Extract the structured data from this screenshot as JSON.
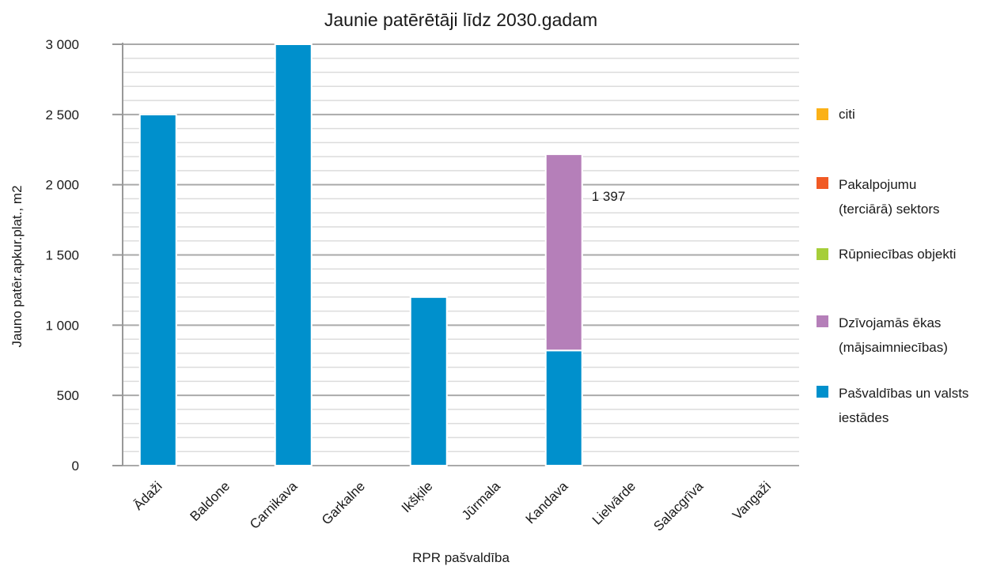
{
  "chart_data": {
    "type": "bar",
    "stacked": true,
    "title": "Jaunie patērētāji līdz 2030.gadam",
    "xlabel": "RPR pašvaldība",
    "ylabel": "Jauno patēr.apkur.plat., m2",
    "ylim": [
      0,
      3000
    ],
    "yticks": [
      0,
      500,
      1000,
      1500,
      2000,
      2500,
      3000
    ],
    "ytick_labels": [
      "0",
      "500",
      "1 000",
      "1 500",
      "2 000",
      "2 500",
      "3 000"
    ],
    "grid": true,
    "legend_position": "right",
    "categories": [
      "Ādaži",
      "Baldone",
      "Carnikava",
      "Garkalne",
      "Ikšķile",
      "Jūrmala",
      "Kandava",
      "Lielvārde",
      "Salacgrīva",
      "Vangaži"
    ],
    "series": [
      {
        "name": "Pašvaldības un valsts iestādes",
        "color": "#0090cc",
        "values": [
          2500,
          0,
          3000,
          0,
          1200,
          0,
          820,
          0,
          0,
          0
        ]
      },
      {
        "name": "Dzīvojamās ēkas (mājsaimniecības)",
        "color": "#b57fb9",
        "values": [
          0,
          0,
          0,
          0,
          0,
          0,
          1397,
          0,
          0,
          0
        ]
      },
      {
        "name": "Rūpniecības objekti",
        "color": "#a6ce39",
        "values": [
          0,
          0,
          0,
          0,
          0,
          0,
          0,
          0,
          0,
          0
        ]
      },
      {
        "name": "Pakalpojumu (terciārā) sektors",
        "color": "#f15a24",
        "values": [
          0,
          0,
          0,
          0,
          0,
          0,
          0,
          0,
          0,
          0
        ]
      },
      {
        "name": "citi",
        "color": "#fbb117",
        "values": [
          0,
          0,
          0,
          0,
          0,
          0,
          0,
          0,
          0,
          0
        ]
      }
    ],
    "data_labels": [
      {
        "category": "Kandava",
        "series": "Dzīvojamās ēkas (mājsaimniecības)",
        "text": "1 397"
      }
    ]
  },
  "legend": [
    {
      "label_line1": "citi",
      "label_line2": "",
      "color": "#fbb117"
    },
    {
      "label_line1": "Pakalpojumu",
      "label_line2": "(terciārā) sektors",
      "color": "#f15a24"
    },
    {
      "label_line1": "Rūpniecības objekti",
      "label_line2": "",
      "color": "#a6ce39"
    },
    {
      "label_line1": "Dzīvojamās ēkas",
      "label_line2": "(mājsaimniecības)",
      "color": "#b57fb9"
    },
    {
      "label_line1": "Pašvaldības un valsts",
      "label_line2": "iestādes",
      "color": "#0090cc"
    }
  ],
  "colors": {
    "axis": "#999999",
    "grid_major": "#aaaaaa",
    "grid_minor": "#dcdcdc"
  }
}
